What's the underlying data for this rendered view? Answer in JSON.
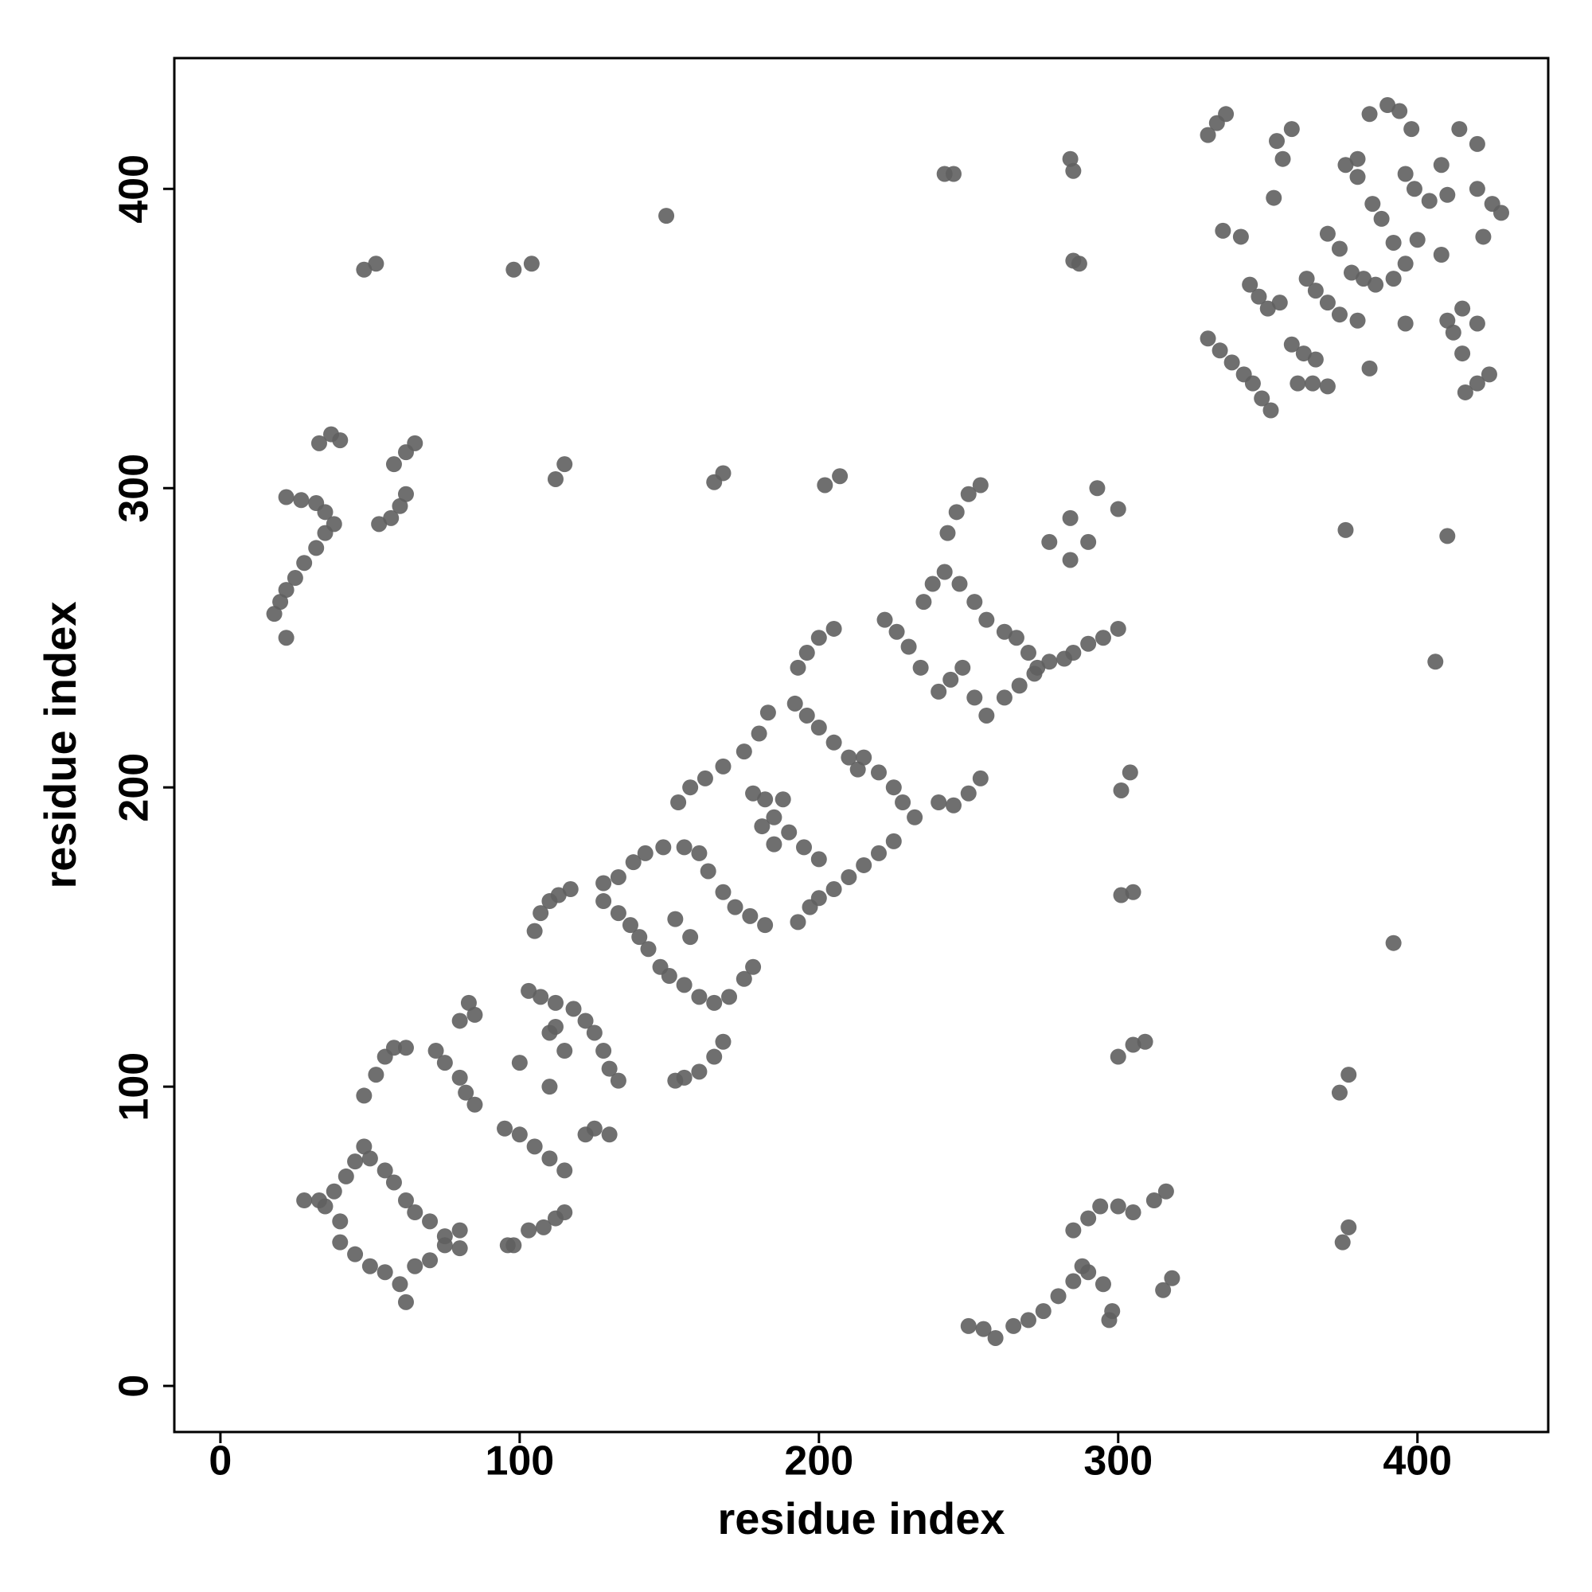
{
  "chart_data": {
    "type": "scatter",
    "x_label": "residue index",
    "y_label": "residue index",
    "color": "#5f5f5f",
    "xlim": [
      -15.4,
      443.7
    ],
    "ylim": [
      -15.4,
      443.7
    ],
    "xticks": [
      0,
      100,
      200,
      300,
      400
    ],
    "yticks": [
      0,
      100,
      200,
      300,
      400
    ],
    "grid": false,
    "x": [
      28,
      33,
      38,
      42,
      45,
      48,
      50,
      55,
      58,
      62,
      65,
      70,
      75,
      80,
      40,
      45,
      50,
      55,
      60,
      62,
      65,
      70,
      75,
      80,
      40,
      35,
      48,
      52,
      55,
      58,
      62,
      72,
      75,
      80,
      82,
      85,
      80,
      83,
      85,
      95,
      100,
      105,
      110,
      115,
      96,
      98,
      103,
      108,
      112,
      115,
      100,
      110,
      110,
      115,
      112,
      103,
      107,
      112,
      118,
      122,
      122,
      125,
      130,
      125,
      128,
      130,
      133,
      105,
      107,
      110,
      113,
      117,
      128,
      133,
      138,
      142,
      148,
      128,
      133,
      137,
      140,
      143,
      147,
      150,
      155,
      160,
      165,
      170,
      175,
      178,
      152,
      155,
      160,
      165,
      168,
      152,
      157,
      153,
      157,
      162,
      168,
      175,
      180,
      183,
      155,
      160,
      163,
      168,
      172,
      177,
      182,
      178,
      182,
      185,
      188,
      190,
      195,
      200,
      181,
      185,
      192,
      196,
      200,
      205,
      210,
      213,
      193,
      196,
      200,
      205,
      193,
      197,
      200,
      205,
      210,
      215,
      220,
      225,
      215,
      220,
      225,
      228,
      232,
      222,
      226,
      230,
      234,
      240,
      245,
      250,
      254,
      235,
      238,
      242,
      247,
      252,
      256,
      240,
      244,
      248,
      252,
      256,
      243,
      246,
      250,
      254,
      262,
      267,
      272,
      277,
      282,
      262,
      266,
      270,
      273,
      285,
      290,
      295,
      300,
      277,
      284,
      284,
      290,
      293,
      300,
      18,
      20,
      22,
      25,
      28,
      32,
      35,
      38,
      22,
      22,
      27,
      32,
      35,
      33,
      37,
      40,
      53,
      57,
      60,
      62,
      58,
      62,
      65,
      48,
      52,
      98,
      104,
      112,
      115,
      149,
      165,
      168,
      202,
      207,
      242,
      245,
      284,
      285,
      285,
      287,
      301,
      304,
      301,
      305,
      300,
      305,
      309,
      250,
      255,
      259,
      265,
      270,
      275,
      280,
      285,
      290,
      285,
      290,
      294,
      300,
      305,
      312,
      316,
      288,
      295,
      298,
      297,
      315,
      318,
      375,
      377,
      374,
      377,
      392,
      376,
      406,
      410,
      330,
      333,
      336,
      330,
      334,
      338,
      342,
      345,
      348,
      351,
      344,
      347,
      350,
      354,
      353,
      355,
      358,
      352,
      358,
      362,
      366,
      360,
      365,
      370,
      363,
      366,
      370,
      374,
      370,
      374,
      378,
      382,
      386,
      376,
      380,
      385,
      388,
      392,
      384,
      390,
      394,
      398,
      380,
      392,
      396,
      400,
      396,
      396,
      399,
      404,
      410,
      408,
      410,
      412,
      415,
      420,
      414,
      420,
      420,
      425,
      428,
      416,
      420,
      424,
      415,
      408,
      422,
      380,
      384,
      341,
      335
    ],
    "values": [
      62,
      62,
      65,
      70,
      75,
      80,
      76,
      72,
      68,
      62,
      58,
      55,
      50,
      46,
      48,
      44,
      40,
      38,
      34,
      28,
      40,
      42,
      47,
      52,
      55,
      60,
      97,
      104,
      110,
      113,
      113,
      112,
      108,
      103,
      98,
      94,
      122,
      128,
      124,
      86,
      84,
      80,
      76,
      72,
      47,
      47,
      52,
      53,
      56,
      58,
      108,
      100,
      118,
      112,
      120,
      132,
      130,
      128,
      126,
      122,
      84,
      86,
      84,
      118,
      112,
      106,
      102,
      152,
      158,
      162,
      164,
      166,
      168,
      170,
      175,
      178,
      180,
      162,
      158,
      154,
      150,
      146,
      140,
      137,
      134,
      130,
      128,
      130,
      136,
      140,
      102,
      103,
      105,
      110,
      115,
      156,
      150,
      195,
      200,
      203,
      207,
      212,
      218,
      225,
      180,
      178,
      172,
      165,
      160,
      157,
      154,
      198,
      196,
      190,
      196,
      185,
      180,
      176,
      187,
      181,
      228,
      224,
      220,
      215,
      210,
      206,
      240,
      245,
      250,
      253,
      155,
      160,
      163,
      166,
      170,
      174,
      178,
      182,
      210,
      205,
      200,
      195,
      190,
      256,
      252,
      247,
      240,
      195,
      194,
      198,
      203,
      262,
      268,
      272,
      268,
      262,
      256,
      232,
      236,
      240,
      230,
      224,
      285,
      292,
      298,
      301,
      230,
      234,
      238,
      242,
      243,
      252,
      250,
      245,
      240,
      245,
      248,
      250,
      253,
      282,
      276,
      290,
      282,
      300,
      293,
      258,
      262,
      266,
      270,
      275,
      280,
      285,
      288,
      250,
      297,
      296,
      295,
      292,
      315,
      318,
      316,
      288,
      290,
      294,
      298,
      308,
      312,
      315,
      373,
      375,
      373,
      375,
      303,
      308,
      391,
      302,
      305,
      301,
      304,
      405,
      405,
      410,
      406,
      376,
      375,
      199,
      205,
      164,
      165,
      110,
      114,
      115,
      20,
      19,
      16,
      20,
      22,
      25,
      30,
      35,
      38,
      52,
      56,
      60,
      60,
      58,
      62,
      65,
      40,
      34,
      25,
      22,
      32,
      36,
      48,
      53,
      98,
      104,
      148,
      286,
      242,
      284,
      418,
      422,
      425,
      350,
      346,
      342,
      338,
      335,
      330,
      326,
      368,
      364,
      360,
      362,
      416,
      410,
      420,
      397,
      348,
      345,
      343,
      335,
      335,
      334,
      370,
      366,
      362,
      358,
      385,
      380,
      372,
      370,
      368,
      408,
      404,
      395,
      390,
      382,
      425,
      428,
      426,
      420,
      410,
      370,
      375,
      383,
      355,
      405,
      400,
      396,
      398,
      378,
      356,
      352,
      360,
      355,
      420,
      415,
      400,
      395,
      392,
      332,
      335,
      338,
      345,
      408,
      384,
      356,
      340,
      384,
      386
    ]
  }
}
